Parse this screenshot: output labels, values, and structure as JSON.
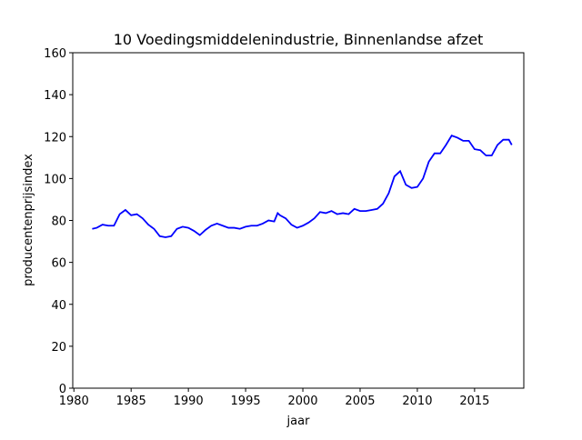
{
  "chart_data": {
    "type": "line",
    "title": "10 Voedingsmiddelenindustrie, Binnenlandse afzet",
    "xlabel": "jaar",
    "ylabel": "producentenprijsindex",
    "x": [
      1981.6,
      1982,
      1982.5,
      1983,
      1983.5,
      1984,
      1984.5,
      1985,
      1985.5,
      1986,
      1986.5,
      1987,
      1987.5,
      1988,
      1988.5,
      1989,
      1989.5,
      1990,
      1990.5,
      1991,
      1991.5,
      1992,
      1992.5,
      1993,
      1993.5,
      1994,
      1994.5,
      1995,
      1995.5,
      1996,
      1996.5,
      1997,
      1997.5,
      1997.8,
      1998,
      1998.5,
      1999,
      1999.5,
      2000,
      2000.5,
      2001,
      2001.5,
      2002,
      2002.5,
      2003,
      2003.5,
      2004,
      2004.5,
      2005,
      2005.5,
      2006,
      2006.5,
      2007,
      2007.5,
      2008,
      2008.5,
      2009,
      2009.5,
      2010,
      2010.5,
      2011,
      2011.5,
      2012,
      2012.5,
      2013,
      2013.5,
      2014,
      2014.5,
      2015,
      2015.5,
      2016,
      2016.5,
      2017,
      2017.5,
      2018,
      2018.25
    ],
    "series": [
      {
        "name": "producentenprijsindex",
        "color": "#0000ff",
        "values": [
          76,
          76.5,
          78,
          77.5,
          77.5,
          83,
          85,
          82.5,
          83,
          81,
          78,
          76,
          72.5,
          72,
          72.5,
          76,
          77,
          76.5,
          75,
          73,
          75.5,
          77.5,
          78.5,
          77.5,
          76.5,
          76.5,
          76,
          77,
          77.5,
          77.5,
          78.5,
          80,
          79.5,
          83.5,
          82.5,
          81,
          78,
          76.5,
          77.5,
          79,
          81,
          84,
          83.5,
          84.5,
          83,
          83.5,
          83,
          85.5,
          84.5,
          84.5,
          85,
          85.5,
          88,
          93,
          101,
          103.5,
          97,
          95.5,
          96,
          100,
          108,
          112,
          112,
          116,
          120.5,
          119.5,
          118,
          118,
          114,
          113.5,
          111,
          111,
          116,
          118.5,
          118.5,
          116
        ]
      }
    ],
    "xlim": [
      1979.9,
      2019.3
    ],
    "xticks": [
      1980,
      1985,
      1990,
      1995,
      2000,
      2005,
      2010,
      2015
    ],
    "ylim": [
      0,
      160
    ],
    "yticks": [
      0,
      20,
      40,
      60,
      80,
      100,
      120,
      140,
      160
    ]
  }
}
